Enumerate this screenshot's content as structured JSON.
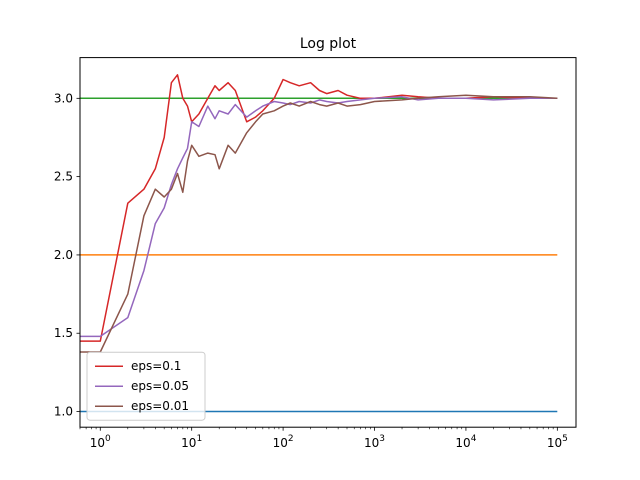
{
  "chart_data": {
    "type": "line",
    "title": "Log plot",
    "xlabel": "",
    "ylabel": "",
    "xscale": "log",
    "xlim": [
      0.6,
      160000
    ],
    "ylim": [
      0.9,
      3.26
    ],
    "grid": false,
    "legend_placement": "lower-left",
    "xticks": [
      {
        "value": 1,
        "base": "10",
        "exp": "0"
      },
      {
        "value": 10,
        "base": "10",
        "exp": "1"
      },
      {
        "value": 100,
        "base": "10",
        "exp": "2"
      },
      {
        "value": 1000,
        "base": "10",
        "exp": "3"
      },
      {
        "value": 10000,
        "base": "10",
        "exp": "4"
      },
      {
        "value": 100000,
        "base": "10",
        "exp": "5"
      }
    ],
    "yticks": [
      {
        "value": 1.0,
        "label": "1.0"
      },
      {
        "value": 1.5,
        "label": "1.5"
      },
      {
        "value": 2.0,
        "label": "2.0"
      },
      {
        "value": 2.5,
        "label": "2.5"
      },
      {
        "value": 3.0,
        "label": "3.0"
      }
    ],
    "series": [
      {
        "color": "#1f77b4",
        "in_legend": false,
        "x": [
          0.6,
          100000
        ],
        "y": [
          1.0,
          1.0
        ]
      },
      {
        "color": "#ff7f0e",
        "in_legend": false,
        "x": [
          0.6,
          100000
        ],
        "y": [
          2.0,
          2.0
        ]
      },
      {
        "color": "#2ca02c",
        "in_legend": false,
        "x": [
          0.6,
          100000
        ],
        "y": [
          3.0,
          3.0
        ]
      },
      {
        "name": "eps=0.1",
        "color": "#d62728",
        "in_legend": true,
        "x": [
          0.6,
          1,
          2,
          3,
          4,
          5,
          6,
          7,
          8,
          9,
          10,
          12,
          15,
          18,
          20,
          25,
          30,
          40,
          50,
          60,
          80,
          100,
          120,
          150,
          200,
          250,
          300,
          400,
          500,
          700,
          1000,
          2000,
          3000,
          5000,
          10000,
          20000,
          50000,
          100000
        ],
        "y": [
          1.45,
          1.45,
          2.33,
          2.42,
          2.55,
          2.75,
          3.1,
          3.15,
          3.0,
          2.95,
          2.85,
          2.9,
          3.0,
          3.08,
          3.05,
          3.1,
          3.05,
          2.85,
          2.88,
          2.92,
          3.0,
          3.12,
          3.1,
          3.08,
          3.1,
          3.05,
          3.03,
          3.05,
          3.02,
          3.0,
          3.0,
          3.02,
          3.01,
          3.0,
          3.0,
          3.01,
          3.0,
          3.0
        ]
      },
      {
        "name": "eps=0.05",
        "color": "#9467bd",
        "in_legend": true,
        "x": [
          0.6,
          1,
          2,
          3,
          4,
          5,
          6,
          7,
          8,
          9,
          10,
          12,
          15,
          18,
          20,
          25,
          30,
          40,
          50,
          60,
          80,
          100,
          120,
          150,
          200,
          250,
          300,
          400,
          500,
          700,
          1000,
          2000,
          3000,
          5000,
          10000,
          20000,
          50000,
          100000
        ],
        "y": [
          1.48,
          1.48,
          1.6,
          1.9,
          2.2,
          2.3,
          2.45,
          2.55,
          2.62,
          2.68,
          2.85,
          2.82,
          2.95,
          2.87,
          2.92,
          2.9,
          2.96,
          2.88,
          2.92,
          2.95,
          2.98,
          2.97,
          2.96,
          2.98,
          2.97,
          2.99,
          2.98,
          2.97,
          2.98,
          2.99,
          3.0,
          3.01,
          2.99,
          3.0,
          3.0,
          2.99,
          3.0,
          3.0
        ]
      },
      {
        "name": "eps=0.01",
        "color": "#8c564b",
        "in_legend": true,
        "x": [
          0.6,
          1,
          2,
          3,
          4,
          5,
          6,
          7,
          8,
          9,
          10,
          12,
          15,
          18,
          20,
          25,
          30,
          40,
          50,
          60,
          80,
          100,
          120,
          150,
          200,
          250,
          300,
          400,
          500,
          700,
          1000,
          2000,
          3000,
          5000,
          10000,
          20000,
          50000,
          100000
        ],
        "y": [
          1.38,
          1.38,
          1.75,
          2.25,
          2.42,
          2.37,
          2.42,
          2.52,
          2.4,
          2.6,
          2.7,
          2.63,
          2.65,
          2.64,
          2.55,
          2.7,
          2.65,
          2.78,
          2.85,
          2.9,
          2.92,
          2.95,
          2.97,
          2.95,
          2.98,
          2.96,
          2.95,
          2.97,
          2.95,
          2.96,
          2.98,
          2.99,
          3.0,
          3.01,
          3.02,
          3.01,
          3.01,
          3.0
        ]
      }
    ]
  }
}
